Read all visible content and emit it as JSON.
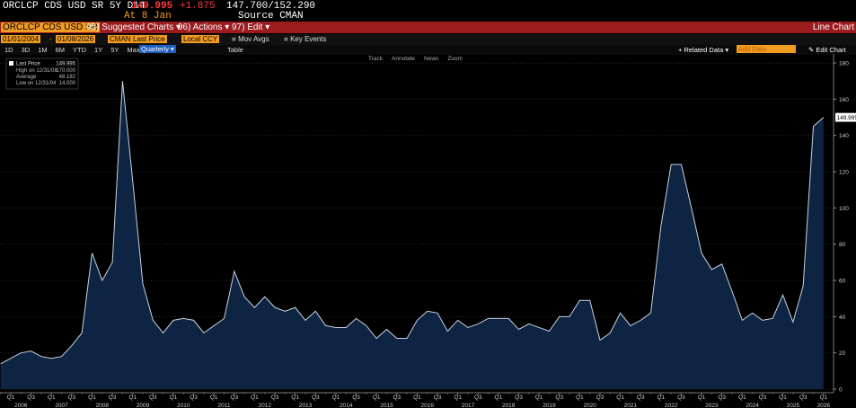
{
  "header": {
    "ticker": "ORCLCP CDS USD SR 5Y D14",
    "last": "149.995",
    "change": "+1.875",
    "range": "147.700/152.290",
    "date": "At 8 Jan",
    "source": "Source CMAN"
  },
  "toolbar": {
    "security": "ORCLCP CDS USD SR",
    "menus": [
      "95) Suggested Charts ▾",
      "96) Actions ▾",
      "97) Edit ▾"
    ],
    "view": "Line Chart"
  },
  "controls": {
    "start": "01/01/2004",
    "separator": "-",
    "end": "01/08/2026",
    "source": "CMAN",
    "field": "Last Price",
    "currency": "Local CCY",
    "toggles": [
      "Mov Avgs",
      "Key Events"
    ]
  },
  "periods": [
    "1D",
    "3D",
    "1M",
    "6M",
    "YTD",
    "1Y",
    "5Y",
    "Max"
  ],
  "frequency": "Quarterly ▾",
  "table": "Table",
  "related": "+ Related Data ▾",
  "add_data": "Add Data",
  "edit_chart": "Edit Chart",
  "tools": [
    "Track",
    "Annotate",
    "News",
    "Zoom"
  ],
  "legend": {
    "last_value": "149.995",
    "rows": [
      {
        "label": "High on 12/31/08",
        "value": "170.000"
      },
      {
        "label": "Average",
        "value": "48.182"
      },
      {
        "label": "Low on 12/31/04",
        "value": "14.000"
      }
    ]
  },
  "chart_data": {
    "type": "area",
    "categories": [
      null,
      "Q1",
      null,
      "Q3",
      null,
      "Q1",
      null,
      "Q3",
      null,
      "Q1",
      null,
      "Q3",
      null,
      "Q1",
      null,
      "Q3",
      null,
      "Q1",
      null,
      "Q3",
      null,
      "Q1",
      null,
      "Q3",
      null,
      "Q1",
      null,
      "Q3",
      null,
      "Q1",
      null,
      "Q3",
      null,
      "Q1",
      null,
      "Q3",
      null,
      "Q1",
      null,
      "Q3",
      null,
      "Q1",
      null,
      "Q3",
      null,
      "Q1",
      null,
      "Q3",
      null,
      "Q1",
      null,
      "Q3",
      null,
      "Q1",
      null,
      "Q3",
      null,
      "Q1",
      null,
      "Q3",
      null,
      "Q1",
      null,
      "Q3",
      null,
      "Q1",
      null,
      "Q3",
      null,
      "Q1",
      null,
      "Q3",
      null,
      "Q1",
      null,
      "Q3",
      null,
      "Q1",
      null,
      "Q3",
      null,
      "Q1"
    ],
    "years": [
      "2006",
      "2007",
      "2008",
      "2009",
      "2010",
      "2011",
      "2012",
      "2013",
      "2014",
      "2015",
      "2016",
      "2017",
      "2018",
      "2019",
      "2020",
      "2021",
      "2022",
      "2023",
      "2024",
      "2025",
      "2026"
    ],
    "series": [
      {
        "name": "Last Price",
        "color": "#c9d3e0",
        "fill": "#0d2442",
        "values": [
          14,
          17,
          20,
          21,
          18,
          17,
          18,
          24,
          31,
          75,
          60,
          70,
          170,
          115,
          58,
          38,
          31,
          38,
          39,
          38,
          31,
          35,
          39,
          65,
          51,
          45,
          51,
          45,
          43,
          45,
          38,
          43,
          35,
          34,
          34,
          39,
          35,
          28,
          33,
          28,
          28,
          38,
          43,
          42,
          32,
          38,
          34,
          36,
          39,
          39,
          39,
          33,
          36,
          34,
          32,
          40,
          40,
          49,
          49,
          27,
          31,
          42,
          35,
          38,
          42,
          90,
          124,
          124,
          100,
          75,
          66,
          69,
          54,
          38,
          42,
          38,
          39,
          52,
          37,
          57,
          145,
          149.995
        ]
      }
    ],
    "ylim": [
      0,
      184
    ],
    "yticks": [
      0,
      20,
      40,
      60,
      80,
      100,
      120,
      140,
      160,
      180
    ],
    "grid": true
  }
}
